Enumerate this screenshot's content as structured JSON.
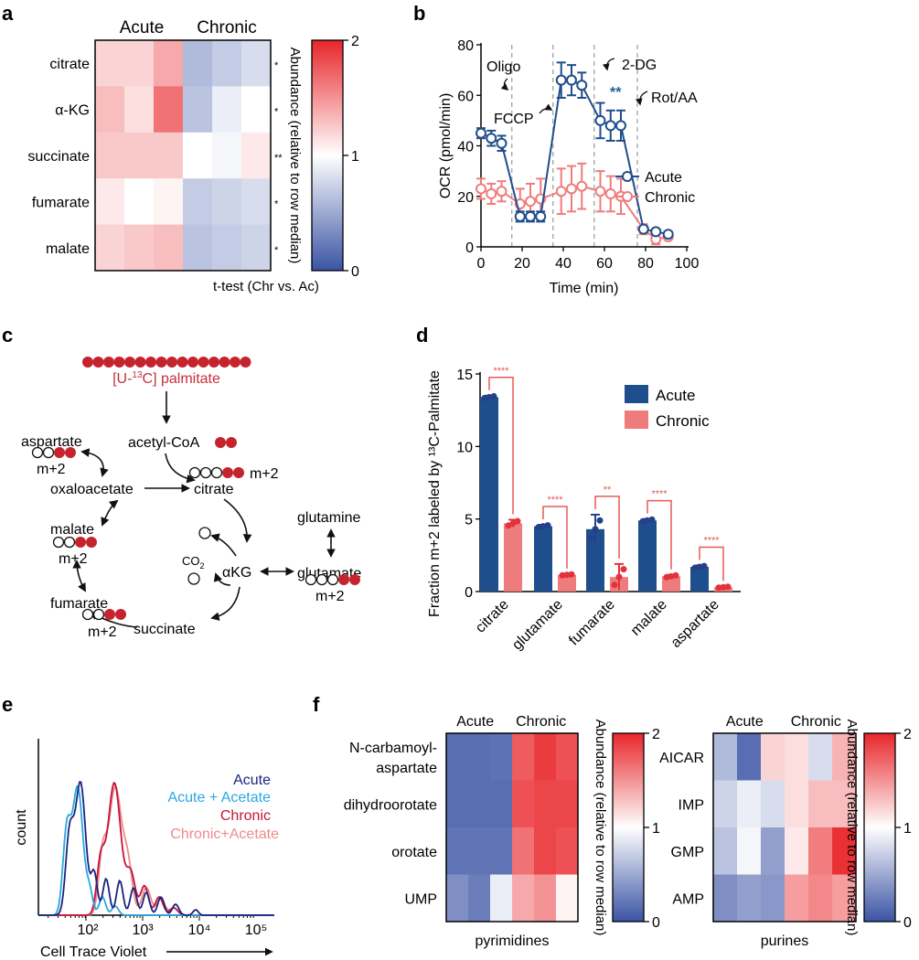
{
  "panel_labels": {
    "a": "a",
    "b": "b",
    "c": "c",
    "d": "d",
    "e": "e",
    "f": "f"
  },
  "colors": {
    "acute_blue": "#1f4e8c",
    "chronic_red": "#ef7c7c",
    "label_red": "#c62f3a",
    "dot_red": "#c5242f",
    "sig_red": "#e65a55",
    "sig_blue": "#1f5e9c",
    "hist_navy": "#1a237e",
    "hist_cyan": "#29a8df",
    "hist_crimson": "#c2153a",
    "hist_pink": "#f08a8a"
  },
  "chart_data": [
    {
      "id": "a",
      "type": "heatmap",
      "title": "",
      "col_groups": [
        "Acute",
        "Chronic"
      ],
      "rows": [
        "citrate",
        "α-KG",
        "succinate",
        "fumarate",
        "malate"
      ],
      "values": [
        [
          1.2,
          1.2,
          1.4,
          0.6,
          0.7,
          0.8
        ],
        [
          1.3,
          1.15,
          1.65,
          0.65,
          0.9,
          1.0
        ],
        [
          1.25,
          1.25,
          1.25,
          1.0,
          0.95,
          1.1
        ],
        [
          1.1,
          1.0,
          1.05,
          0.7,
          0.75,
          0.8
        ],
        [
          1.2,
          1.25,
          1.3,
          0.65,
          0.7,
          0.75
        ]
      ],
      "significance": [
        "*",
        "*",
        "**",
        "*",
        "*"
      ],
      "sig_label": "t-test (Chr vs. Ac)",
      "colorbar": {
        "min": 0,
        "mid": 1,
        "max": 2,
        "ticks": [
          "2",
          "1",
          "0"
        ],
        "label": "Abundance (relative to row median)"
      }
    },
    {
      "id": "b",
      "type": "line",
      "xlabel": "Time (min)",
      "ylabel": "OCR (pmol/min)",
      "xlim": [
        0,
        100
      ],
      "ylim": [
        0,
        80
      ],
      "xticks": [
        "0",
        "20",
        "40",
        "60",
        "80",
        "100"
      ],
      "yticks": [
        "0",
        "20",
        "40",
        "60",
        "80"
      ],
      "vlines": [
        15,
        35,
        55,
        76
      ],
      "injections": [
        "Oligo",
        "FCCP",
        "2-DG",
        "Rot/AA"
      ],
      "annotation": "**",
      "series": [
        {
          "name": "Acute",
          "x": [
            0,
            5,
            10,
            19,
            24,
            29,
            39,
            44,
            49,
            58,
            63,
            68,
            79,
            85,
            91
          ],
          "y": [
            45,
            43,
            41,
            12,
            12,
            12,
            66,
            66,
            64,
            50,
            48,
            48,
            7,
            6,
            5
          ],
          "err": [
            2,
            3,
            3,
            2,
            2,
            2,
            7,
            6,
            5,
            7,
            6,
            6,
            1,
            1,
            1
          ]
        },
        {
          "name": "Chronic",
          "x": [
            0,
            5,
            10,
            19,
            24,
            29,
            39,
            44,
            49,
            58,
            63,
            68,
            79,
            85,
            91
          ],
          "y": [
            23,
            21,
            22,
            17,
            18,
            19,
            22,
            23,
            24,
            22,
            21,
            20,
            7,
            3,
            4
          ],
          "err": [
            4,
            4,
            4,
            6,
            7,
            8,
            9,
            9,
            9,
            8,
            7,
            7,
            2,
            2,
            1
          ]
        }
      ]
    },
    {
      "id": "d",
      "type": "bar",
      "ylabel": "Fraction m+2 labeled by ¹³C-Palmitate",
      "categories": [
        "citrate",
        "glutamate",
        "fumarate",
        "malate",
        "aspartate"
      ],
      "ylim": [
        0,
        15
      ],
      "yticks": [
        "0",
        "5",
        "10",
        "15"
      ],
      "series": [
        {
          "name": "Acute",
          "values": [
            13.4,
            4.5,
            4.3,
            4.9,
            1.7
          ],
          "err": [
            0.1,
            0.1,
            1.0,
            0.1,
            0.1
          ]
        },
        {
          "name": "Chronic",
          "values": [
            4.7,
            1.15,
            1.0,
            1.05,
            0.3
          ],
          "err": [
            0.25,
            0.05,
            0.9,
            0.1,
            0.05
          ]
        }
      ],
      "significance": [
        "****",
        "****",
        "**",
        "****",
        "****"
      ]
    },
    {
      "id": "e",
      "type": "line",
      "xlabel": "Cell Trace Violet",
      "ylabel": "count",
      "xticks": [
        "10²",
        "10³",
        "10⁴",
        "10⁵"
      ],
      "legend": [
        "Acute",
        "Acute + Acetate",
        "Chronic",
        "Chronic+Acetate"
      ]
    },
    {
      "id": "f_pyrimidines",
      "type": "heatmap",
      "col_groups": [
        "Acute",
        "Chronic"
      ],
      "rows": [
        "N-carbamoyl-\naspartate",
        "dihydroorotate",
        "orotate",
        "UMP"
      ],
      "row_labels": [
        [
          "N-carbamoyl-",
          "aspartate"
        ],
        [
          "dihydroorotate"
        ],
        [
          "orotate"
        ],
        [
          "UMP"
        ]
      ],
      "values": [
        [
          0.15,
          0.15,
          0.18,
          1.75,
          1.9,
          1.8
        ],
        [
          0.15,
          0.15,
          0.15,
          1.8,
          1.85,
          1.85
        ],
        [
          0.2,
          0.2,
          0.2,
          1.65,
          1.85,
          1.8
        ],
        [
          0.35,
          0.25,
          0.9,
          1.4,
          1.5,
          1.05
        ]
      ],
      "xlabel": "pyrimidines",
      "colorbar": {
        "min": 0,
        "mid": 1,
        "max": 2,
        "ticks": [
          "2",
          "1",
          "0"
        ],
        "label": "Abundance (relative to row median)"
      }
    },
    {
      "id": "f_purines",
      "type": "heatmap",
      "col_groups": [
        "Acute",
        "Chronic"
      ],
      "rows": [
        "AICAR",
        "IMP",
        "GMP",
        "AMP"
      ],
      "row_labels": [
        [
          "AICAR"
        ],
        [
          "IMP"
        ],
        [
          "GMP"
        ],
        [
          "AMP"
        ]
      ],
      "values": [
        [
          0.6,
          0.15,
          1.2,
          1.15,
          0.8,
          1.35
        ],
        [
          0.75,
          0.9,
          0.8,
          1.15,
          1.3,
          1.3
        ],
        [
          0.65,
          0.95,
          0.45,
          1.1,
          1.6,
          1.95
        ],
        [
          0.35,
          0.45,
          0.4,
          1.45,
          1.55,
          1.45
        ]
      ],
      "xlabel": "purines",
      "colorbar": {
        "min": 0,
        "mid": 1,
        "max": 2,
        "ticks": [
          "2",
          "1",
          "0"
        ],
        "label": "Abundance (relative to row median)"
      }
    }
  ],
  "diagram_c": {
    "palmitate": [
      "[U-",
      "13",
      "C] palmitate"
    ],
    "acetyl_coa": "acetyl-CoA",
    "citrate": "citrate",
    "citrate_m2": "m+2",
    "oxaloacetate": "oxaloacetate",
    "aspartate": "aspartate",
    "aspartate_m2": "m+2",
    "malate": "malate",
    "malate_m2": "m+2",
    "fumarate": "fumarate",
    "fumarate_m2": "m+2",
    "succinate": "succinate",
    "akg": "αKG",
    "co2": [
      "CO",
      "2"
    ],
    "glutamine": "glutamine",
    "glutamate": "glutamate",
    "glutamate_m2": "m+2"
  }
}
